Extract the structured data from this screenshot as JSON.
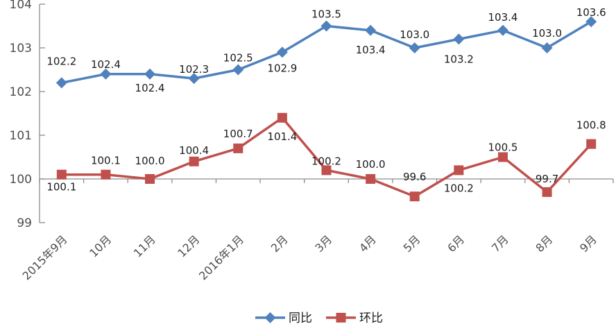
{
  "chart_data": {
    "type": "line",
    "title": "",
    "xlabel": "",
    "ylabel": "",
    "categories": [
      "2015年9月",
      "10月",
      "11月",
      "12月",
      "2016年1月",
      "2月",
      "3月",
      "4月",
      "5月",
      "6月",
      "7月",
      "8月",
      "9月"
    ],
    "series": [
      {
        "name": "同比",
        "color": "#4F81BD",
        "marker": "diamond",
        "values": [
          102.2,
          102.4,
          102.4,
          102.3,
          102.5,
          102.9,
          103.5,
          103.4,
          103.0,
          103.2,
          103.4,
          103.0,
          103.6
        ],
        "label_dy": [
          -26,
          -9,
          25,
          -8,
          -12,
          28,
          -12,
          33,
          -14,
          34,
          -14,
          -16,
          -8
        ]
      },
      {
        "name": "环比",
        "color": "#C0504D",
        "marker": "square",
        "values": [
          100.1,
          100.1,
          100.0,
          100.4,
          100.7,
          101.4,
          100.2,
          100.0,
          99.6,
          100.2,
          100.5,
          99.7,
          100.8
        ],
        "label_dy": [
          23,
          -15,
          -21,
          -11,
          -16,
          32,
          -8,
          -16,
          -23,
          31,
          -9,
          -14,
          -22
        ]
      }
    ],
    "ylim": [
      99,
      104
    ],
    "yticks": [
      99,
      100,
      101,
      102,
      103,
      104
    ],
    "x_axis_at_value": 100,
    "grid": false,
    "data_labels": true,
    "data_label_decimals": 1,
    "legend_position": "bottom",
    "colors": {
      "axis_line": "#8C8C8C",
      "axis_text": "#4d4d4d",
      "data_label_text": "#1a1a1a",
      "background": "#ffffff"
    }
  }
}
